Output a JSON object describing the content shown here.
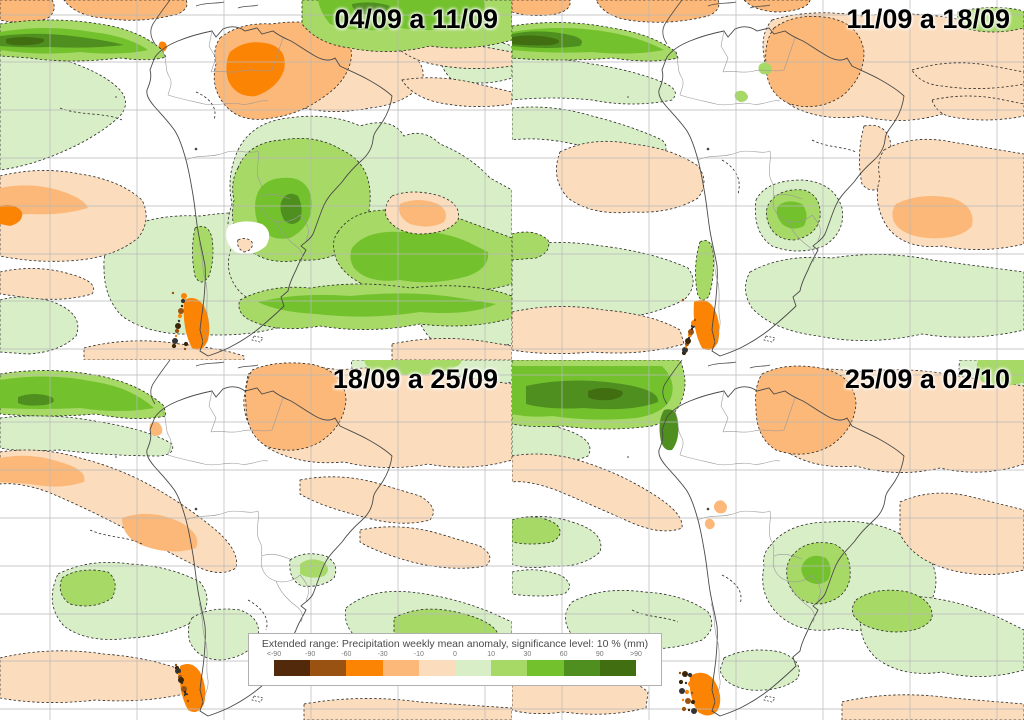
{
  "figure": {
    "description": "Four-panel weekly precipitation anomaly forecast maps over South America",
    "region": "South America"
  },
  "panels": [
    {
      "title": "04/09 a 11/09"
    },
    {
      "title": "11/09 a 18/09"
    },
    {
      "title": "18/09 a 25/09"
    },
    {
      "title": "25/09 a 02/10"
    }
  ],
  "legend": {
    "title": "Extended range: Precipitation weekly mean anomaly, significance level: 10 % (mm)",
    "ticks": [
      "<-90",
      "-90",
      "-60",
      "-30",
      "-10",
      "0",
      "10",
      "30",
      "60",
      "90",
      ">90"
    ],
    "colors": [
      "#52290a",
      "#9a5212",
      "#fb8405",
      "#fcb878",
      "#fbdcbc",
      "#d8eec6",
      "#a6d966",
      "#73c12d",
      "#4f8f20",
      "#406e11"
    ]
  }
}
